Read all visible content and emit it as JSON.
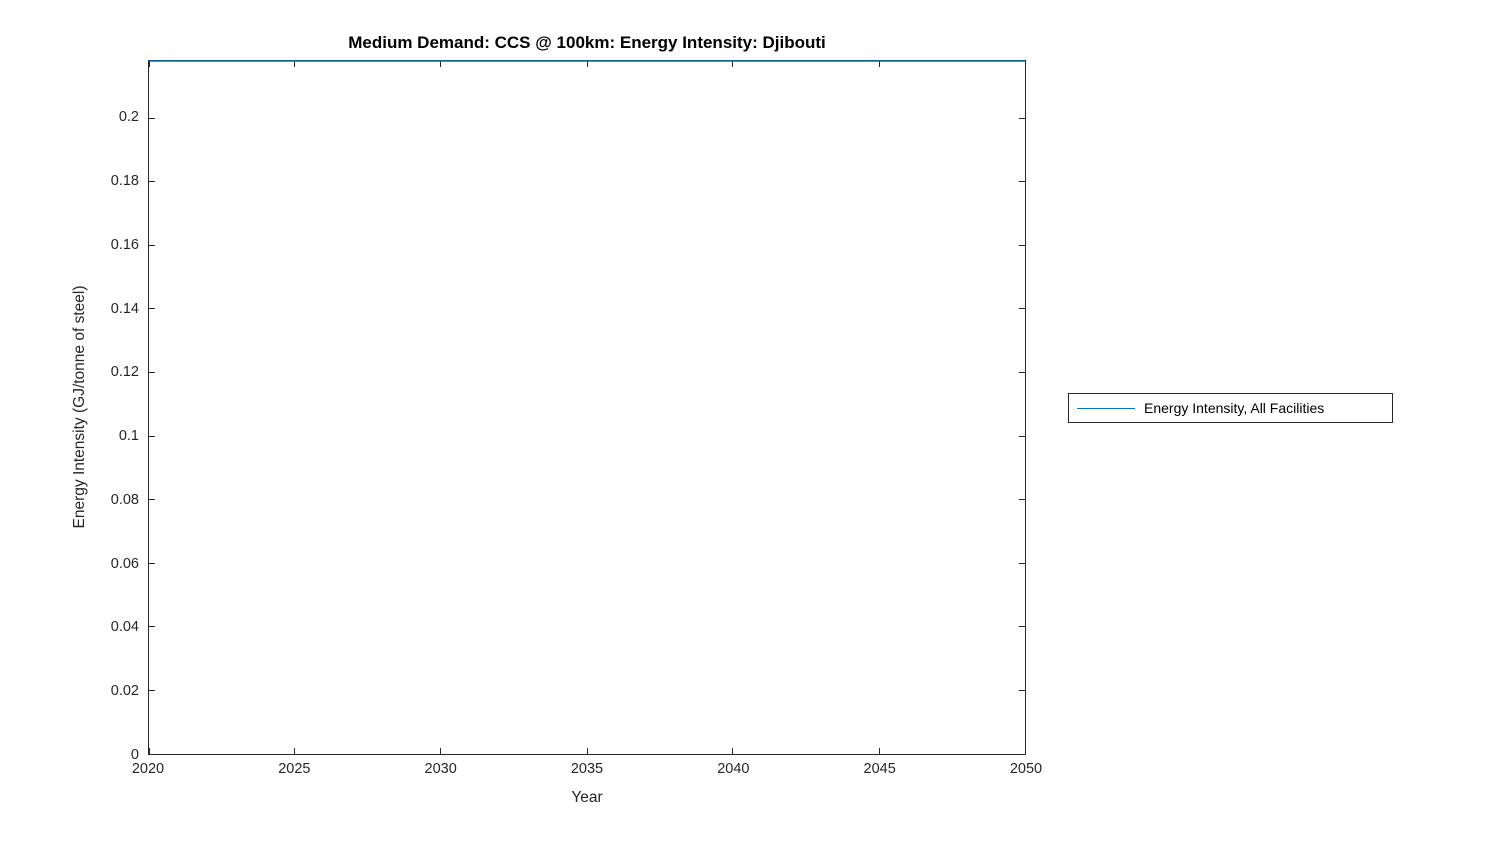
{
  "chart_data": {
    "type": "line",
    "title": "Medium Demand: CCS @ 100km: Energy Intensity: Djibouti",
    "xlabel": "Year",
    "ylabel": "Energy Intensity (GJ/tonne of steel)",
    "xlim": [
      2020,
      2050
    ],
    "ylim": [
      0,
      0.218
    ],
    "xticks": [
      2020,
      2025,
      2030,
      2035,
      2040,
      2045,
      2050
    ],
    "xtick_labels": [
      "2020",
      "2025",
      "2030",
      "2035",
      "2040",
      "2045",
      "2050"
    ],
    "yticks": [
      0,
      0.02,
      0.04,
      0.06,
      0.08,
      0.1,
      0.12,
      0.14,
      0.16,
      0.18,
      0.2
    ],
    "ytick_labels": [
      "0",
      "0.02",
      "0.04",
      "0.06",
      "0.08",
      "0.1",
      "0.12",
      "0.14",
      "0.16",
      "0.18",
      "0.2"
    ],
    "grid": false,
    "legend_position": "right-outside",
    "series": [
      {
        "name": "Energy Intensity, All Facilities",
        "color": "#0072BD",
        "x": [
          2020,
          2050
        ],
        "values": [
          0.218,
          0.218
        ]
      }
    ]
  },
  "colors": {
    "axis": "#262626",
    "series_line": "#0072BD",
    "background": "#ffffff"
  }
}
